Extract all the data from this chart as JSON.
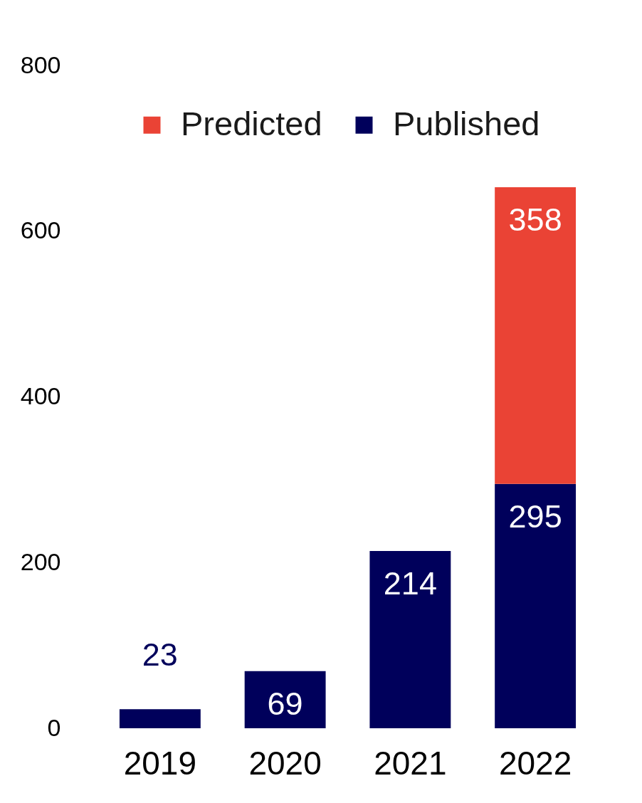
{
  "chart_data": {
    "type": "bar",
    "categories": [
      "2019",
      "2020",
      "2021",
      "2022"
    ],
    "stacked": true,
    "series": [
      {
        "name": "Published",
        "color": "#00005b",
        "values": [
          23,
          69,
          214,
          295
        ]
      },
      {
        "name": "Predicted",
        "color": "#ea4335",
        "values": [
          null,
          null,
          null,
          358
        ]
      }
    ],
    "ylim": [
      0,
      800
    ],
    "yticks": [
      0,
      200,
      400,
      600,
      800
    ],
    "legend": "top",
    "data_labels": true
  }
}
